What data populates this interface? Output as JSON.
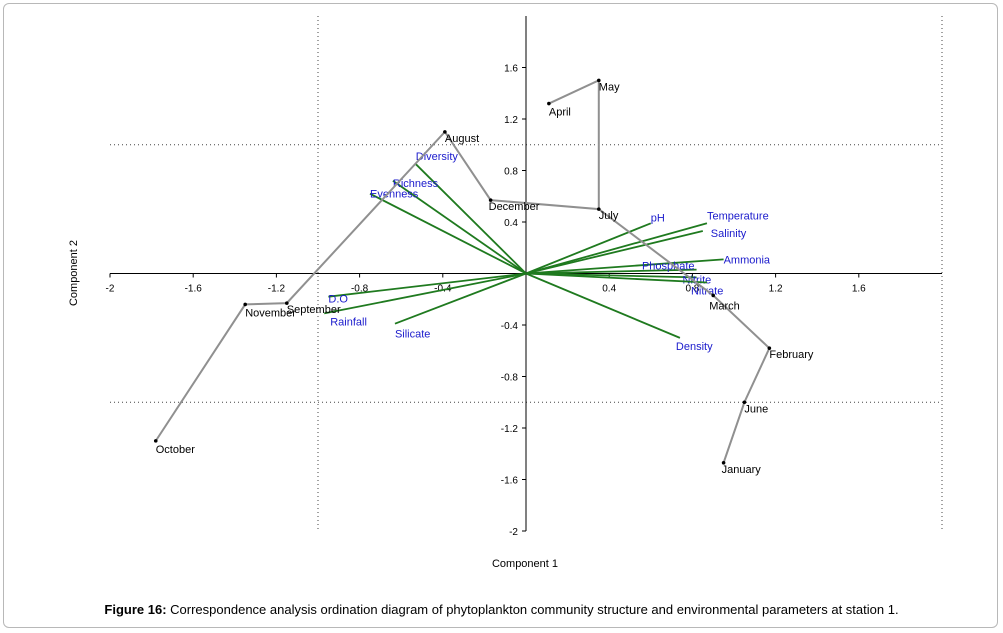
{
  "chart_data": {
    "type": "scatter",
    "xlabel": "Component 1",
    "ylabel": "Component 2",
    "xlim": [
      -2,
      2
    ],
    "ylim": [
      -2,
      2
    ],
    "x_ticks": [
      -2,
      -1.6,
      -1.2,
      -0.8,
      -0.4,
      0.4,
      0.8,
      1.2,
      1.6
    ],
    "y_ticks": [
      1.6,
      1.2,
      0.8,
      0.4,
      -0.4,
      -0.8,
      -1.2,
      -1.6,
      -2
    ],
    "x_tick_labels": [
      "-2",
      "-1.6",
      "-1.2",
      "-0.8",
      "-0.4",
      "0.4",
      "0.8",
      "1.2",
      "1.6"
    ],
    "y_tick_labels": [
      "1.6",
      "1.2",
      "0.8",
      "0.4",
      "-0.4",
      "-0.8",
      "-1.2",
      "-1.6",
      "-2"
    ],
    "grid": "dotted frame lines",
    "months": [
      {
        "label": "October",
        "x": -1.78,
        "y": -1.3
      },
      {
        "label": "November",
        "x": -1.35,
        "y": -0.24
      },
      {
        "label": "September",
        "x": -1.15,
        "y": -0.23
      },
      {
        "label": "August",
        "x": -0.39,
        "y": 1.1
      },
      {
        "label": "December",
        "x": -0.17,
        "y": 0.57
      },
      {
        "label": "July",
        "x": 0.35,
        "y": 0.5
      },
      {
        "label": "March",
        "x": 0.9,
        "y": -0.17
      },
      {
        "label": "February",
        "x": 1.17,
        "y": -0.58
      },
      {
        "label": "June",
        "x": 1.05,
        "y": -1.0
      },
      {
        "label": "January",
        "x": 0.95,
        "y": -1.47
      },
      {
        "label": "April",
        "x": 0.11,
        "y": 1.32
      },
      {
        "label": "May",
        "x": 0.35,
        "y": 1.5
      }
    ],
    "month_path": [
      "October",
      "November",
      "September",
      "August",
      "December",
      "July",
      "March",
      "February",
      "June",
      "January"
    ],
    "month_path_2": [
      "April",
      "May",
      "July"
    ],
    "vectors": [
      {
        "label": "Diversity",
        "x": -0.53,
        "y": 0.85
      },
      {
        "label": "Richness",
        "x": -0.64,
        "y": 0.72
      },
      {
        "label": "Evenness",
        "x": -0.75,
        "y": 0.62
      },
      {
        "label": "pH",
        "x": 0.6,
        "y": 0.39
      },
      {
        "label": "Temperature",
        "x": 0.87,
        "y": 0.39
      },
      {
        "label": "Salinity",
        "x": 0.85,
        "y": 0.33
      },
      {
        "label": "Ammonia",
        "x": 0.95,
        "y": 0.11
      },
      {
        "label": "Phosphate",
        "x": 0.82,
        "y": 0.03
      },
      {
        "label": "Nitrite",
        "x": 0.82,
        "y": -0.03
      },
      {
        "label": "Nitrate",
        "x": 0.87,
        "y": -0.07
      },
      {
        "label": "Density",
        "x": 0.74,
        "y": -0.5
      },
      {
        "label": "D.O",
        "x": -0.95,
        "y": -0.18
      },
      {
        "label": "Rainfall",
        "x": -0.97,
        "y": -0.31
      },
      {
        "label": "Silicate",
        "x": -0.63,
        "y": -0.39
      }
    ],
    "colors": {
      "vectors": "#1f7a1f",
      "months_line": "#909090",
      "vector_labels": "#1a1acc",
      "points": "#000000"
    }
  },
  "caption": {
    "label": "Figure 16:",
    "text": " Correspondence analysis ordination diagram of phytoplankton community structure and environmental parameters at station 1."
  }
}
